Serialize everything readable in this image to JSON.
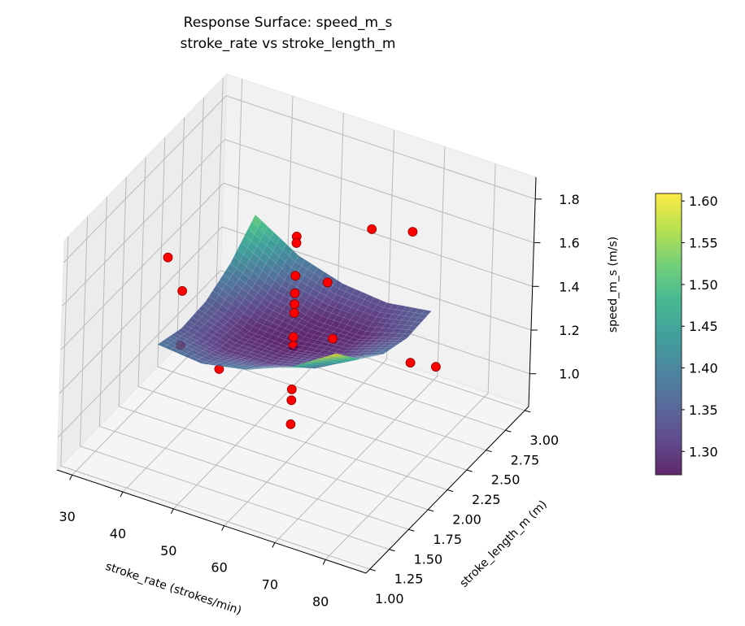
{
  "chart_data": {
    "type": "surface3d",
    "title": "Response Surface: speed_m_s",
    "subtitle": "stroke_rate vs stroke_length_m",
    "xlabel": "stroke_rate (strokes/min)",
    "ylabel": "stroke_length_m (m)",
    "zlabel": "speed_m_s (m/s)",
    "xlim": [
      27,
      88
    ],
    "ylim": [
      0.95,
      3.05
    ],
    "zlim": [
      0.85,
      1.9
    ],
    "xticks": [
      30,
      40,
      50,
      60,
      70,
      80
    ],
    "xtick_labels": [
      "30",
      "40",
      "50",
      "60",
      "70",
      "80"
    ],
    "yticks": [
      1.0,
      1.25,
      1.5,
      1.75,
      2.0,
      2.25,
      2.5,
      2.75,
      3.0
    ],
    "ytick_labels": [
      "1.00",
      "1.25",
      "1.50",
      "1.75",
      "2.00",
      "2.25",
      "2.50",
      "2.75",
      "3.00"
    ],
    "zticks": [
      1.0,
      1.2,
      1.4,
      1.6,
      1.8
    ],
    "ztick_labels": [
      "1.0",
      "1.2",
      "1.4",
      "1.6",
      "1.8"
    ],
    "grid": true,
    "colorbar": {
      "cmap": "viridis",
      "range": [
        1.272,
        1.609
      ],
      "ticks": [
        1.3,
        1.35,
        1.4,
        1.45,
        1.5,
        1.55,
        1.6
      ],
      "tick_labels": [
        "1.30",
        "1.35",
        "1.40",
        "1.45",
        "1.50",
        "1.55",
        "1.60"
      ],
      "placement": "right"
    },
    "surface": {
      "x": [
        40,
        48.75,
        57.5,
        66.25,
        75
      ],
      "y": [
        1.35,
        1.6625,
        1.975,
        2.2875,
        2.6
      ],
      "z": [
        [
          1.38,
          1.36,
          1.4,
          1.48,
          1.61
        ],
        [
          1.34,
          1.3,
          1.31,
          1.36,
          1.47
        ],
        [
          1.35,
          1.28,
          1.27,
          1.3,
          1.38
        ],
        [
          1.41,
          1.32,
          1.28,
          1.28,
          1.34
        ],
        [
          1.52,
          1.4,
          1.34,
          1.32,
          1.35
        ]
      ]
    },
    "points": [
      {
        "x": 32,
        "y": 2.0,
        "z": 1.48
      },
      {
        "x": 35,
        "y": 2.0,
        "z": 1.35
      },
      {
        "x": 35,
        "y": 2.0,
        "z": 1.1
      },
      {
        "x": 50,
        "y": 1.5,
        "z": 1.29
      },
      {
        "x": 56,
        "y": 2.5,
        "z": 1.37
      },
      {
        "x": 57,
        "y": 3.0,
        "z": 1.44
      },
      {
        "x": 65,
        "y": 3.0,
        "z": 1.49
      },
      {
        "x": 80,
        "y": 2.0,
        "z": 1.37
      },
      {
        "x": 85,
        "y": 2.0,
        "z": 1.39
      },
      {
        "x": 72,
        "y": 1.5,
        "z": 1.6
      },
      {
        "x": 57,
        "y": 2.0,
        "z": 1.77
      },
      {
        "x": 57,
        "y": 2.0,
        "z": 1.74
      },
      {
        "x": 57,
        "y": 2.0,
        "z": 1.59
      },
      {
        "x": 57,
        "y": 2.0,
        "z": 1.51
      },
      {
        "x": 57,
        "y": 2.0,
        "z": 1.46
      },
      {
        "x": 57,
        "y": 2.0,
        "z": 1.42
      },
      {
        "x": 57,
        "y": 2.0,
        "z": 1.31
      },
      {
        "x": 57,
        "y": 2.0,
        "z": 1.27
      },
      {
        "x": 57,
        "y": 2.0,
        "z": 1.07
      },
      {
        "x": 57,
        "y": 2.0,
        "z": 1.02
      },
      {
        "x": 57,
        "y": 2.0,
        "z": 0.91
      }
    ],
    "point_color": "#ff0000",
    "point_edge_color": "#8b0000"
  }
}
